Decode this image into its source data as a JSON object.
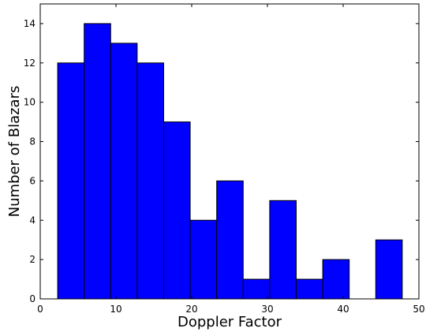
{
  "chart_data": {
    "type": "bar",
    "subtype": "histogram",
    "bins": [
      {
        "x0": 2.3,
        "x1": 5.8,
        "value": 12
      },
      {
        "x0": 5.8,
        "x1": 9.3,
        "value": 14
      },
      {
        "x0": 9.3,
        "x1": 12.8,
        "value": 13
      },
      {
        "x0": 12.8,
        "x1": 16.3,
        "value": 12
      },
      {
        "x0": 16.3,
        "x1": 19.8,
        "value": 9
      },
      {
        "x0": 19.8,
        "x1": 23.3,
        "value": 4
      },
      {
        "x0": 23.3,
        "x1": 26.8,
        "value": 6
      },
      {
        "x0": 26.8,
        "x1": 30.3,
        "value": 1
      },
      {
        "x0": 30.3,
        "x1": 33.8,
        "value": 5
      },
      {
        "x0": 33.8,
        "x1": 37.3,
        "value": 1
      },
      {
        "x0": 37.3,
        "x1": 40.8,
        "value": 2
      },
      {
        "x0": 40.8,
        "x1": 44.3,
        "value": 0
      },
      {
        "x0": 44.3,
        "x1": 47.8,
        "value": 3
      }
    ],
    "xlabel": "Doppler Factor",
    "ylabel": "Number of Blazars",
    "xlim": [
      0,
      50
    ],
    "ylim": [
      0,
      15
    ],
    "xticks": [
      "0",
      "10",
      "20",
      "30",
      "40",
      "50"
    ],
    "yticks": [
      "0",
      "2",
      "4",
      "6",
      "8",
      "10",
      "12",
      "14"
    ],
    "bar_color": "#0000ff",
    "grid": false
  }
}
